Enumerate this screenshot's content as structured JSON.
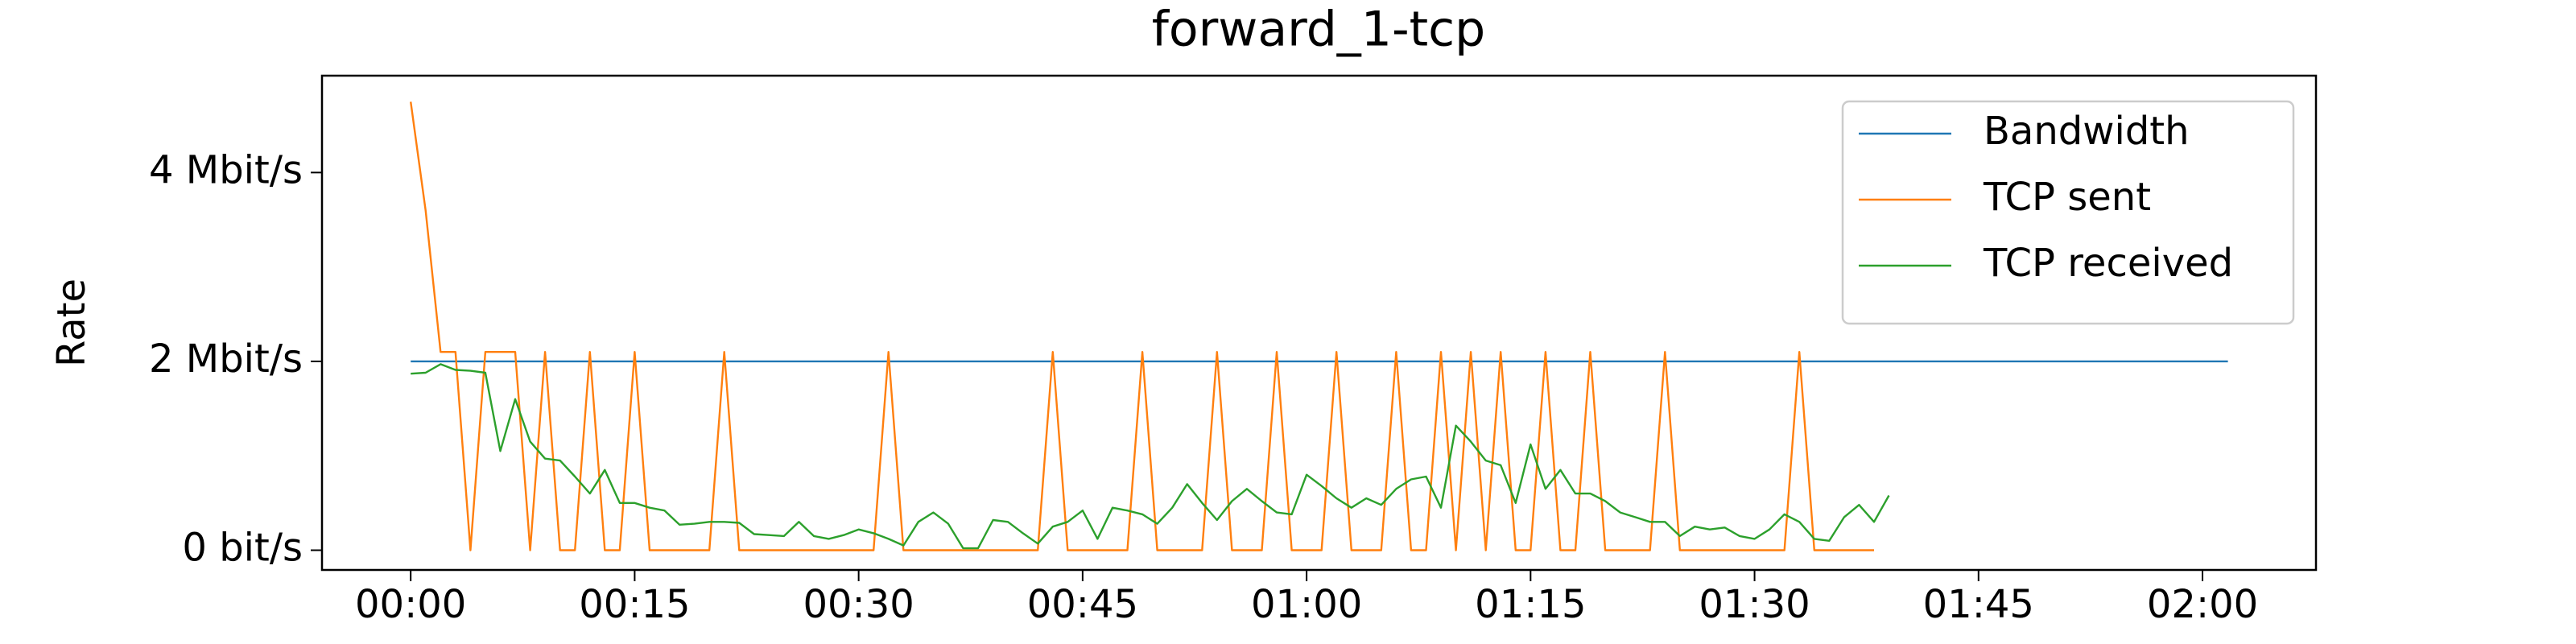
{
  "chart_data": {
    "type": "line",
    "title": "forward_1-tcp",
    "y_label": "Rate",
    "xlim": [
      -5.94,
      127.6
    ],
    "ylim": [
      -0.209,
      5.026
    ],
    "xticks": [
      {
        "value": 0,
        "label": "00:00"
      },
      {
        "value": 15,
        "label": "00:15"
      },
      {
        "value": 30,
        "label": "00:30"
      },
      {
        "value": 45,
        "label": "00:45"
      },
      {
        "value": 60,
        "label": "01:00"
      },
      {
        "value": 75,
        "label": "01:15"
      },
      {
        "value": 90,
        "label": "01:30"
      },
      {
        "value": 105,
        "label": "01:45"
      },
      {
        "value": 120,
        "label": "02:00"
      }
    ],
    "yticks": [
      {
        "value": 0,
        "label": "0 bit/s"
      },
      {
        "value": 2,
        "label": "2 Mbit/s"
      },
      {
        "value": 4,
        "label": "4 Mbit/s"
      }
    ],
    "legend": "upper right",
    "series": [
      {
        "name": "Bandwidth",
        "color": "#1f77b4",
        "x": [
          0,
          121.7
        ],
        "values": [
          2,
          2
        ]
      },
      {
        "name": "TCP sent",
        "color": "#ff7f0e",
        "x": [
          0,
          1,
          2,
          3,
          4,
          5,
          6,
          7,
          8,
          9,
          10,
          11,
          12,
          13,
          14,
          15,
          16,
          17,
          18,
          19,
          20,
          21,
          22,
          23,
          24,
          25,
          26,
          27,
          28,
          29,
          30,
          31,
          32,
          33,
          34,
          35,
          36,
          37,
          38,
          39,
          40,
          41,
          42,
          43,
          44,
          45,
          46,
          47,
          48,
          49,
          50,
          51,
          52,
          53,
          54,
          55,
          56,
          57,
          58,
          59,
          60,
          61,
          62,
          63,
          64,
          65,
          66,
          67,
          68,
          69,
          70,
          71,
          72,
          73,
          74,
          75,
          76,
          77,
          78,
          79,
          80,
          81,
          82,
          83,
          84,
          85,
          86,
          87,
          88,
          89,
          90,
          91,
          92,
          93,
          94,
          95,
          96,
          97,
          98
        ],
        "values": [
          4.75,
          3.6,
          2.1,
          2.1,
          0,
          2.1,
          2.1,
          2.1,
          0,
          2.1,
          0,
          0,
          2.1,
          0,
          0,
          2.1,
          0,
          0,
          0,
          0,
          0,
          2.1,
          0,
          0,
          0,
          0,
          0,
          0,
          0,
          0,
          0,
          0,
          2.1,
          0,
          0,
          0,
          0,
          0,
          0,
          0,
          0,
          0,
          0,
          2.1,
          0,
          0,
          0,
          0,
          0,
          2.1,
          0,
          0,
          0,
          0,
          2.1,
          0,
          0,
          0,
          2.1,
          0,
          0,
          0,
          2.1,
          0,
          0,
          0,
          2.1,
          0,
          0,
          2.1,
          0,
          2.1,
          0,
          2.1,
          0,
          0,
          2.1,
          0,
          0,
          2.1,
          0,
          0,
          0,
          0,
          2.1,
          0,
          0,
          0,
          0,
          0,
          0,
          0,
          0,
          2.1,
          0,
          0,
          0,
          0,
          0
        ]
      },
      {
        "name": "TCP received",
        "color": "#2ca02c",
        "x": [
          0,
          1,
          2,
          3,
          4,
          5,
          6,
          7,
          8,
          9,
          10,
          11,
          12,
          13,
          14,
          15,
          16,
          17,
          18,
          19,
          20,
          21,
          22,
          23,
          24,
          25,
          26,
          27,
          28,
          29,
          30,
          31,
          32,
          33,
          34,
          35,
          36,
          37,
          38,
          39,
          40,
          41,
          42,
          43,
          44,
          45,
          46,
          47,
          48,
          49,
          50,
          51,
          52,
          53,
          54,
          55,
          56,
          57,
          58,
          59,
          60,
          61,
          62,
          63,
          64,
          65,
          66,
          67,
          68,
          69,
          70,
          71,
          72,
          73,
          74,
          75,
          76,
          77,
          78,
          79,
          80,
          81,
          82,
          83,
          84,
          85,
          86,
          87,
          88,
          89,
          90,
          91,
          92,
          93,
          94,
          95,
          96,
          97,
          98,
          99
        ],
        "values": [
          1.87,
          1.88,
          1.97,
          1.91,
          1.9,
          1.88,
          1.05,
          1.6,
          1.15,
          0.97,
          0.95,
          0.78,
          0.6,
          0.85,
          0.5,
          0.5,
          0.45,
          0.42,
          0.27,
          0.28,
          0.3,
          0.3,
          0.29,
          0.17,
          0.16,
          0.15,
          0.3,
          0.15,
          0.12,
          0.16,
          0.22,
          0.18,
          0.12,
          0.05,
          0.3,
          0.4,
          0.28,
          0.02,
          0.02,
          0.32,
          0.3,
          0.18,
          0.07,
          0.25,
          0.3,
          0.42,
          0.12,
          0.45,
          0.42,
          0.38,
          0.28,
          0.45,
          0.7,
          0.5,
          0.32,
          0.52,
          0.65,
          0.52,
          0.4,
          0.38,
          0.8,
          0.68,
          0.55,
          0.45,
          0.55,
          0.48,
          0.65,
          0.75,
          0.78,
          0.45,
          1.32,
          1.15,
          0.95,
          0.9,
          0.5,
          1.12,
          0.65,
          0.85,
          0.6,
          0.6,
          0.52,
          0.4,
          0.35,
          0.3,
          0.3,
          0.15,
          0.25,
          0.22,
          0.24,
          0.15,
          0.12,
          0.22,
          0.38,
          0.3,
          0.12,
          0.1,
          0.35,
          0.48,
          0.3,
          0.58
        ]
      }
    ]
  }
}
